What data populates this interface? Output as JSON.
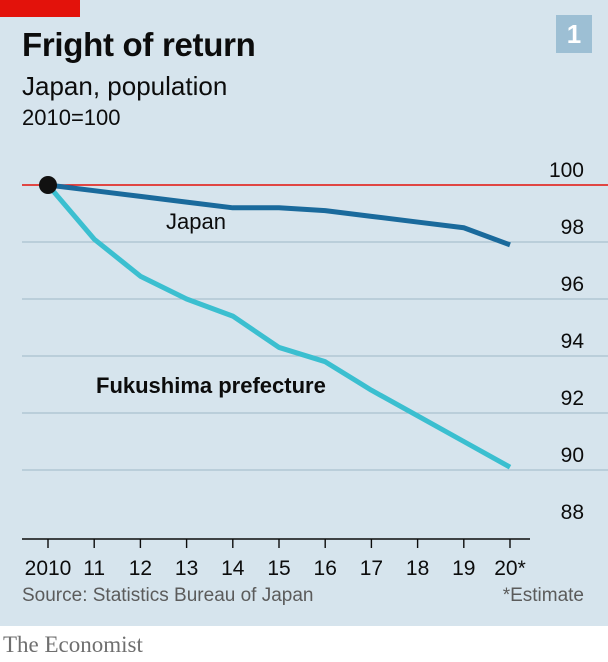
{
  "header": {
    "title": "Fright of return",
    "subtitle": "Japan, population",
    "unit": "2010=100",
    "badge": "1"
  },
  "footer": {
    "source": "Source: Statistics Bureau of Japan",
    "footnote": "*Estimate",
    "brand": "The Economist"
  },
  "colors": {
    "background": "#d6e4ed",
    "japan": "#1a6a9c",
    "fukushima": "#3bbfd0",
    "reference_line": "#e3120b",
    "grid": "#a9c0ce"
  },
  "chart_data": {
    "type": "line",
    "x": [
      "2010",
      "11",
      "12",
      "13",
      "14",
      "15",
      "16",
      "17",
      "18",
      "19",
      "20*"
    ],
    "series": [
      {
        "name": "Japan",
        "values": [
          100,
          99.8,
          99.6,
          99.4,
          99.2,
          99.2,
          99.1,
          98.9,
          98.7,
          98.5,
          97.9
        ]
      },
      {
        "name": "Fukushima prefecture",
        "values": [
          100,
          98.1,
          96.8,
          96.0,
          95.4,
          94.3,
          93.8,
          92.8,
          91.9,
          91.0,
          90.1
        ]
      }
    ],
    "y_ticks": [
      88,
      90,
      92,
      94,
      96,
      98,
      100
    ],
    "ylim": [
      88,
      100
    ],
    "reference_value": 100,
    "grid": true,
    "y_axis_side": "right"
  }
}
